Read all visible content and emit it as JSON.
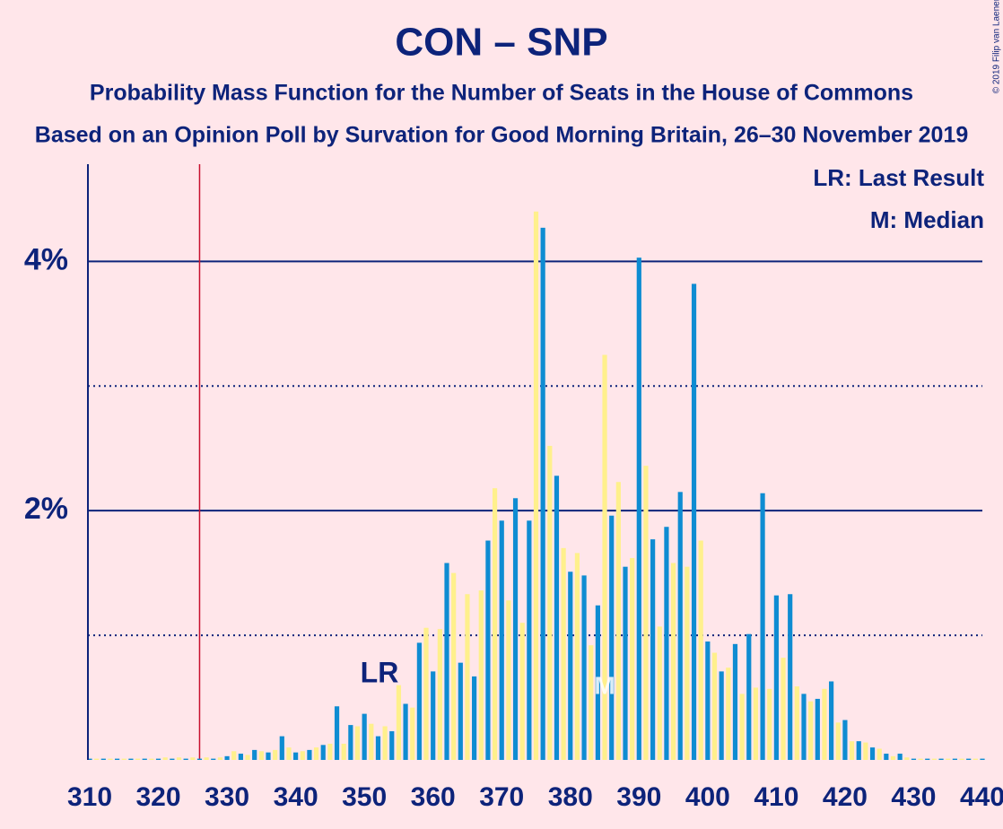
{
  "chart_data": {
    "type": "bar",
    "title": "CON – SNP",
    "subtitles": [
      "Probability Mass Function for the Number of Seats in the House of Commons",
      "Based on an Opinion Poll by Survation for Good Morning Britain, 26–30 November 2019"
    ],
    "copyright": "© 2019 Filip van Laenen",
    "x": [
      310,
      311,
      312,
      313,
      314,
      315,
      316,
      317,
      318,
      319,
      320,
      321,
      322,
      323,
      324,
      325,
      326,
      327,
      328,
      329,
      330,
      331,
      332,
      333,
      334,
      335,
      336,
      337,
      338,
      339,
      340,
      341,
      342,
      343,
      344,
      345,
      346,
      347,
      348,
      349,
      350,
      351,
      352,
      353,
      354,
      355,
      356,
      357,
      358,
      359,
      360,
      361,
      362,
      363,
      364,
      365,
      366,
      367,
      368,
      369,
      370,
      371,
      372,
      373,
      374,
      375,
      376,
      377,
      378,
      379,
      380,
      381,
      382,
      383,
      384,
      385,
      386,
      387,
      388,
      389,
      390,
      391,
      392,
      393,
      394,
      395,
      396,
      397,
      398,
      399,
      400,
      401,
      402,
      403,
      404,
      405,
      406,
      407,
      408,
      409,
      410,
      411,
      412,
      413,
      414,
      415,
      416,
      417,
      418,
      419,
      420,
      421,
      422,
      423,
      424,
      425,
      426,
      427,
      428,
      429,
      430,
      431,
      432,
      433,
      434,
      435,
      436,
      437,
      438,
      439,
      440
    ],
    "values": [
      0.01,
      0.01,
      0.01,
      0.01,
      0.01,
      0.01,
      0.01,
      0.01,
      0.01,
      0.01,
      0.01,
      0.02,
      0.01,
      0.02,
      0.01,
      0.02,
      0.01,
      0.02,
      0.01,
      0.02,
      0.03,
      0.07,
      0.05,
      0.04,
      0.08,
      0.07,
      0.06,
      0.08,
      0.19,
      0.1,
      0.06,
      0.07,
      0.08,
      0.1,
      0.12,
      0.13,
      0.43,
      0.13,
      0.28,
      0.27,
      0.37,
      0.29,
      0.19,
      0.27,
      0.23,
      0.6,
      0.45,
      0.42,
      0.94,
      1.06,
      0.71,
      1.05,
      1.58,
      1.5,
      0.78,
      1.33,
      0.67,
      1.36,
      1.76,
      2.18,
      1.92,
      1.28,
      2.1,
      1.1,
      1.92,
      4.4,
      4.27,
      2.52,
      2.28,
      1.7,
      1.51,
      1.66,
      1.48,
      0.92,
      1.24,
      3.25,
      1.96,
      2.23,
      1.55,
      1.62,
      4.03,
      2.36,
      1.77,
      1.07,
      1.87,
      1.58,
      2.15,
      1.55,
      3.82,
      1.76,
      0.95,
      0.86,
      0.71,
      0.74,
      0.93,
      0.53,
      1.01,
      0.58,
      2.14,
      0.57,
      1.32,
      0.82,
      1.33,
      0.59,
      0.53,
      0.47,
      0.49,
      0.57,
      0.63,
      0.3,
      0.32,
      0.15,
      0.15,
      0.14,
      0.1,
      0.09,
      0.05,
      0.03,
      0.05,
      0.02,
      0.01,
      0.01,
      0.01,
      0.01,
      0.01,
      0.01,
      0.01,
      0.01,
      0.01,
      0.01,
      0.01
    ],
    "colors": [
      "#0e8cd2",
      "#fff08c"
    ],
    "xlim": [
      310,
      440
    ],
    "xticks": [
      310,
      320,
      330,
      340,
      350,
      360,
      370,
      380,
      390,
      400,
      410,
      420,
      430,
      440
    ],
    "ylim": [
      0,
      4.78
    ],
    "yticks": [
      {
        "value": 2,
        "label": "2%"
      },
      {
        "value": 4,
        "label": "4%"
      }
    ],
    "minor_grid": [
      1,
      3
    ],
    "last_result": {
      "x": 326,
      "label": "LR"
    },
    "median": {
      "x": 385,
      "label": "M"
    },
    "legend": [
      "LR: Last Result",
      "M: Median"
    ]
  }
}
